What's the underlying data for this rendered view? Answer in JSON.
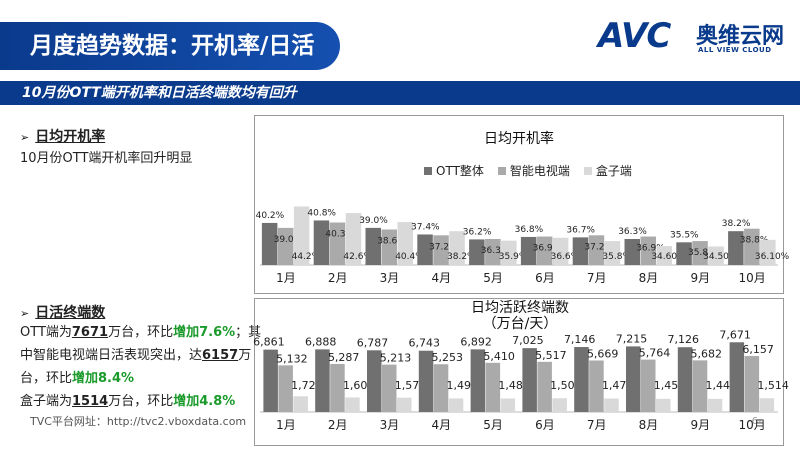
{
  "header": {
    "title": "月度趋势数据：开机率/日活",
    "logo_text": "AVC",
    "logo_cn": "奥维云网",
    "logo_en": "ALL VIEW CLOUD"
  },
  "subtitle": "10月份OTT端开机率和日活终端数均有回升",
  "section1": {
    "bullet": "➢",
    "heading": "日均开机率",
    "desc": "10月份OTT端开机率回升明显"
  },
  "section2": {
    "bullet": "➢",
    "heading": "日活终端数",
    "l1a": "OTT端为",
    "l1b": "7671",
    "l1c": "万台，环比",
    "l1d": "增加7.6%",
    "l1e": "；其",
    "l2a": "中智能电视端日活表现突出，达",
    "l2b": "6157",
    "l2c": "万",
    "l3a": "台，环比",
    "l3b": "增加8.4%",
    "l4a": "盒子端为",
    "l4b": "1514",
    "l4c": "万台，环比",
    "l4d": "增加4.8%"
  },
  "source": "TVC平台网址：http://tvc2.vboxdata.com",
  "page_number": "-6-",
  "colors": {
    "ott": "#707070",
    "tv": "#aaaaaa",
    "box": "#d9d9d9",
    "brand": "#0a3a8c",
    "green": "#1a9a2a"
  },
  "chart_data": [
    {
      "type": "bar",
      "title": "日均开机率",
      "categories": [
        "1月",
        "2月",
        "3月",
        "4月",
        "5月",
        "6月",
        "7月",
        "8月",
        "9月",
        "10月"
      ],
      "series": [
        {
          "name": "OTT整体",
          "values": [
            40.2,
            40.8,
            39.0,
            37.4,
            36.2,
            36.8,
            36.7,
            36.3,
            35.5,
            38.2
          ],
          "labels": [
            "40.2%",
            "40.8%",
            "39.0%",
            "37.4%",
            "36.2%",
            "36.8%",
            "36.7%",
            "36.3%",
            "35.5%",
            "38.2%"
          ]
        },
        {
          "name": "智能电视端",
          "values": [
            39.0,
            40.3,
            38.6,
            37.2,
            36.3,
            36.9,
            37.2,
            36.9,
            35.8,
            38.8
          ],
          "labels": [
            "39.0%",
            "40.3%",
            "38.6%",
            "37.2%",
            "36.3%",
            "36.9%",
            "37.2%",
            "36.9%",
            "35.8%",
            "38.8%"
          ]
        },
        {
          "name": "盒子端",
          "values": [
            44.2,
            42.6,
            40.4,
            38.2,
            35.9,
            36.6,
            35.8,
            34.6,
            34.5,
            36.1
          ],
          "labels": [
            "44.2%",
            "42.6%",
            "40.4%",
            "38.2%",
            "35.9%",
            "36.6%",
            "35.8%",
            "34.60%",
            "34.50%",
            "36.10%"
          ]
        }
      ],
      "ylim": [
        30,
        46
      ],
      "legend": "top"
    },
    {
      "type": "bar",
      "title": "日均活跃终端数",
      "unit": "（万台/天）",
      "categories": [
        "1月",
        "2月",
        "3月",
        "4月",
        "5月",
        "6月",
        "7月",
        "8月",
        "9月",
        "10月"
      ],
      "series": [
        {
          "name": "OTT整体",
          "values": [
            6861,
            6888,
            6787,
            6743,
            6892,
            7025,
            7146,
            7215,
            7126,
            7671
          ],
          "labels": [
            "6,861",
            "6,888",
            "6,787",
            "6,743",
            "6,892",
            "7,025",
            "7,146",
            "7,215",
            "7,126",
            "7,671"
          ]
        },
        {
          "name": "智能电视端",
          "values": [
            5132,
            5287,
            5213,
            5253,
            5410,
            5517,
            5669,
            5764,
            5682,
            6157
          ],
          "labels": [
            "5,132",
            "5,287",
            "5,213",
            "5,253",
            "5,410",
            "5,517",
            "5,669",
            "5,764",
            "5,682",
            "6,157"
          ]
        },
        {
          "name": "盒子端",
          "values": [
            1729,
            1601,
            1574,
            1490,
            1482,
            1508,
            1477,
            1451,
            1444,
            1514
          ],
          "labels": [
            "1,729",
            "1,601",
            "1,574",
            "1,490",
            "1,482",
            "1,508",
            "1,477",
            "1,451",
            "1,444",
            "1,514"
          ]
        }
      ],
      "ylim": [
        0,
        7700
      ]
    }
  ]
}
